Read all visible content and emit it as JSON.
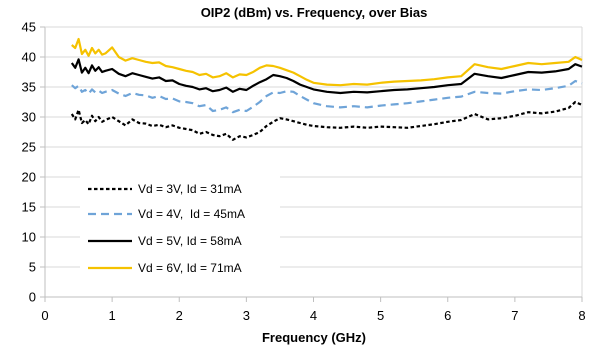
{
  "chart_data": {
    "type": "line",
    "title": "OIP2 (dBm) vs. Frequency, over Bias",
    "xlabel": "Frequency (GHz)",
    "ylabel": "",
    "xlim": [
      0,
      8
    ],
    "ylim": [
      0,
      45
    ],
    "xticks": [
      0,
      1,
      2,
      3,
      4,
      5,
      6,
      7,
      8
    ],
    "yticks": [
      0,
      5,
      10,
      15,
      20,
      25,
      30,
      35,
      40,
      45
    ],
    "grid": {
      "x": false,
      "y": true
    },
    "legend_position": "lower-left",
    "series": [
      {
        "name": "Vd = 3V, Id = 31mA",
        "color": "#000000",
        "style": "dotted",
        "x": [
          0.4,
          0.45,
          0.5,
          0.55,
          0.6,
          0.65,
          0.7,
          0.75,
          0.8,
          0.85,
          0.9,
          1.0,
          1.1,
          1.2,
          1.3,
          1.4,
          1.5,
          1.6,
          1.7,
          1.8,
          1.9,
          2.0,
          2.1,
          2.2,
          2.3,
          2.4,
          2.5,
          2.6,
          2.7,
          2.8,
          2.9,
          3.0,
          3.1,
          3.2,
          3.3,
          3.4,
          3.5,
          3.6,
          3.7,
          3.8,
          3.9,
          4.0,
          4.2,
          4.4,
          4.6,
          4.8,
          5.0,
          5.2,
          5.4,
          5.6,
          5.8,
          6.0,
          6.2,
          6.4,
          6.6,
          6.8,
          7.0,
          7.2,
          7.4,
          7.6,
          7.8,
          7.9,
          8.0
        ],
        "y": [
          30.5,
          29.6,
          31.2,
          29.0,
          29.5,
          28.8,
          30.2,
          29.3,
          30.0,
          29.2,
          29.5,
          30.0,
          29.3,
          28.6,
          29.6,
          29.0,
          28.9,
          28.5,
          28.7,
          28.3,
          28.6,
          28.2,
          28.0,
          27.8,
          27.2,
          27.5,
          27.0,
          26.8,
          27.2,
          26.2,
          26.8,
          26.6,
          27.0,
          27.5,
          28.5,
          29.2,
          29.8,
          29.6,
          29.3,
          29.0,
          28.7,
          28.5,
          28.3,
          28.2,
          28.4,
          28.2,
          28.4,
          28.3,
          28.2,
          28.5,
          28.8,
          29.2,
          29.5,
          30.5,
          29.6,
          29.8,
          30.2,
          30.8,
          30.6,
          30.9,
          31.5,
          32.5,
          32.0
        ]
      },
      {
        "name": "Vd = 4V,  Id = 45mA",
        "color": "#6fa4d8",
        "style": "dashed",
        "x": [
          0.4,
          0.45,
          0.5,
          0.55,
          0.6,
          0.65,
          0.7,
          0.75,
          0.8,
          0.85,
          0.9,
          1.0,
          1.1,
          1.2,
          1.3,
          1.4,
          1.5,
          1.6,
          1.7,
          1.8,
          1.9,
          2.0,
          2.1,
          2.2,
          2.3,
          2.4,
          2.5,
          2.6,
          2.7,
          2.8,
          2.9,
          3.0,
          3.1,
          3.2,
          3.3,
          3.4,
          3.5,
          3.6,
          3.7,
          3.8,
          3.9,
          4.0,
          4.2,
          4.4,
          4.6,
          4.8,
          5.0,
          5.2,
          5.4,
          5.6,
          5.8,
          6.0,
          6.2,
          6.4,
          6.6,
          6.8,
          7.0,
          7.2,
          7.4,
          7.6,
          7.8,
          7.9,
          8.0
        ],
        "y": [
          35.3,
          34.8,
          35.2,
          34.2,
          34.5,
          33.9,
          34.6,
          34.1,
          34.4,
          34.0,
          34.2,
          34.5,
          33.9,
          33.5,
          34.0,
          33.7,
          33.6,
          33.2,
          33.5,
          33.0,
          33.1,
          32.6,
          32.5,
          32.3,
          31.8,
          32.0,
          31.0,
          31.2,
          31.6,
          30.8,
          31.2,
          31.0,
          31.7,
          32.5,
          33.5,
          34.1,
          34.0,
          34.3,
          34.2,
          33.5,
          32.9,
          32.3,
          31.8,
          31.6,
          31.8,
          31.6,
          31.9,
          32.1,
          32.3,
          32.6,
          32.9,
          33.2,
          33.4,
          34.2,
          34.0,
          33.9,
          34.3,
          34.6,
          34.5,
          34.8,
          35.2,
          36.0,
          35.6
        ]
      },
      {
        "name": "Vd = 5V, Id = 58mA",
        "color": "#000000",
        "style": "solid",
        "x": [
          0.4,
          0.45,
          0.5,
          0.55,
          0.6,
          0.65,
          0.7,
          0.75,
          0.8,
          0.85,
          0.9,
          1.0,
          1.1,
          1.2,
          1.3,
          1.4,
          1.5,
          1.6,
          1.7,
          1.8,
          1.9,
          2.0,
          2.1,
          2.2,
          2.3,
          2.4,
          2.5,
          2.6,
          2.7,
          2.8,
          2.9,
          3.0,
          3.1,
          3.2,
          3.3,
          3.4,
          3.5,
          3.6,
          3.7,
          3.8,
          3.9,
          4.0,
          4.2,
          4.4,
          4.6,
          4.8,
          5.0,
          5.2,
          5.4,
          5.6,
          5.8,
          6.0,
          6.2,
          6.4,
          6.6,
          6.8,
          7.0,
          7.2,
          7.4,
          7.6,
          7.8,
          7.9,
          8.0
        ],
        "y": [
          39.0,
          38.2,
          39.6,
          37.4,
          38.2,
          37.3,
          38.6,
          37.7,
          38.3,
          37.5,
          37.7,
          38.0,
          37.2,
          36.8,
          37.3,
          37.0,
          36.7,
          36.4,
          36.6,
          36.0,
          36.1,
          35.5,
          35.2,
          35.0,
          34.6,
          34.8,
          34.3,
          34.5,
          34.9,
          34.2,
          34.7,
          34.5,
          35.2,
          35.8,
          36.3,
          37.0,
          36.8,
          36.5,
          36.0,
          35.4,
          35.0,
          34.6,
          34.2,
          34.0,
          34.2,
          34.1,
          34.3,
          34.5,
          34.6,
          34.8,
          35.0,
          35.3,
          35.5,
          37.2,
          36.8,
          36.5,
          37.0,
          37.5,
          37.4,
          37.6,
          38.0,
          38.8,
          38.4
        ]
      },
      {
        "name": "Vd = 6V, Id = 71mA",
        "color": "#f5c200",
        "style": "solid",
        "x": [
          0.4,
          0.45,
          0.5,
          0.55,
          0.6,
          0.65,
          0.7,
          0.75,
          0.8,
          0.85,
          0.9,
          1.0,
          1.1,
          1.2,
          1.3,
          1.4,
          1.5,
          1.6,
          1.7,
          1.8,
          1.9,
          2.0,
          2.1,
          2.2,
          2.3,
          2.4,
          2.5,
          2.6,
          2.7,
          2.8,
          2.9,
          3.0,
          3.1,
          3.2,
          3.3,
          3.4,
          3.5,
          3.6,
          3.7,
          3.8,
          3.9,
          4.0,
          4.2,
          4.4,
          4.6,
          4.8,
          5.0,
          5.2,
          5.4,
          5.6,
          5.8,
          6.0,
          6.2,
          6.4,
          6.6,
          6.8,
          7.0,
          7.2,
          7.4,
          7.6,
          7.8,
          7.9,
          8.0
        ],
        "y": [
          42.0,
          41.5,
          43.0,
          40.5,
          41.2,
          40.2,
          41.5,
          40.6,
          41.2,
          40.4,
          40.6,
          41.6,
          40.0,
          39.4,
          39.8,
          39.5,
          39.2,
          39.0,
          39.1,
          38.5,
          38.3,
          38.0,
          37.7,
          37.5,
          37.0,
          37.2,
          36.6,
          36.8,
          37.3,
          36.6,
          37.1,
          37.0,
          37.5,
          38.2,
          38.6,
          38.5,
          38.2,
          37.8,
          37.4,
          36.8,
          36.2,
          35.7,
          35.4,
          35.3,
          35.5,
          35.4,
          35.7,
          35.9,
          36.0,
          36.1,
          36.3,
          36.6,
          36.8,
          38.8,
          38.3,
          38.0,
          38.5,
          39.0,
          38.8,
          39.0,
          39.2,
          40.0,
          39.5
        ]
      }
    ]
  }
}
